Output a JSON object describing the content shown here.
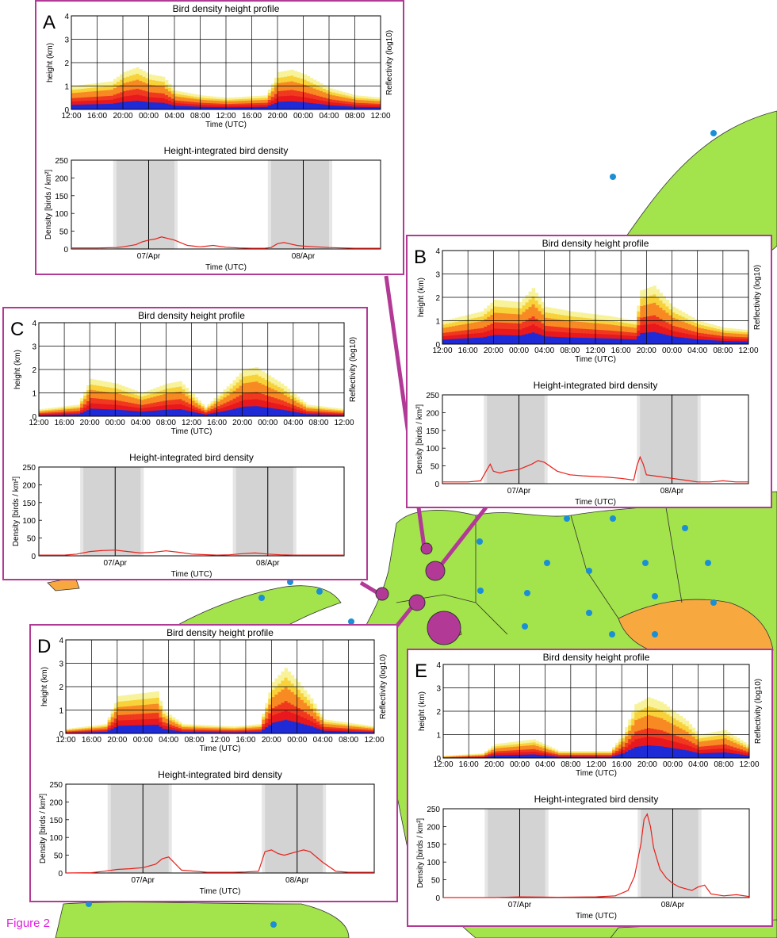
{
  "figure_label": "Figure 2",
  "colors": {
    "panel_border": "#b23a96",
    "land": "#a3e34b",
    "sea": "#ffffff",
    "orange_region": "#f7a940",
    "radar_dot": "#1a8fd6",
    "radar_circle": "#b23a96",
    "night_shade": "#d3d3d3",
    "twilight_shade": "#e6e6e6",
    "density_line": "#e8201a"
  },
  "panels": [
    {
      "id": "A",
      "letter": "A",
      "profile_title": "Bird density height profile",
      "density_title": "Height-integrated bird density"
    },
    {
      "id": "B",
      "letter": "B",
      "profile_title": "Bird density height profile",
      "density_title": "Height-integrated bird density"
    },
    {
      "id": "C",
      "letter": "C",
      "profile_title": "Bird density height profile",
      "density_title": "Height-integrated bird density"
    },
    {
      "id": "D",
      "letter": "D",
      "profile_title": "Bird density height profile",
      "density_title": "Height-integrated bird density"
    },
    {
      "id": "E",
      "letter": "E",
      "profile_title": "Bird density height profile",
      "density_title": "Height-integrated bird density"
    }
  ],
  "profile_axes": {
    "ylabel": "height (km)",
    "xlabel": "Time (UTC)",
    "colorbar_label": "Reflectivity (log10)",
    "yticks": [
      "0",
      "1",
      "2",
      "3",
      "4"
    ],
    "xticks": [
      "12:00",
      "16:00",
      "20:00",
      "00:00",
      "04:00",
      "08:00",
      "12:00",
      "16:00",
      "20:00",
      "00:00",
      "04:00",
      "08:00",
      "12:00"
    ]
  },
  "density_axes": {
    "ylabel": "Density [birds / km²]",
    "xlabel": "Time (UTC)",
    "yticks": [
      "0",
      "50",
      "100",
      "150",
      "200",
      "250"
    ],
    "date_labels": [
      "07/Apr",
      "08/Apr"
    ]
  },
  "chart_data": [
    {
      "panel": "A",
      "type": "line",
      "title": "Height-integrated bird density",
      "xlabel": "Time (UTC)",
      "ylabel": "Density [birds / km²]",
      "ylim": [
        0,
        250
      ],
      "xlim_hours": [
        0,
        48
      ],
      "x_hours": [
        0,
        4,
        7,
        8,
        10,
        11,
        12,
        13,
        14,
        16,
        18,
        19,
        20,
        22,
        24,
        26,
        28,
        30,
        31,
        32,
        33,
        34,
        35,
        36,
        38,
        40,
        42,
        44,
        46,
        48
      ],
      "y": [
        3,
        3,
        4,
        6,
        12,
        20,
        25,
        28,
        34,
        25,
        10,
        8,
        6,
        10,
        5,
        3,
        2,
        2,
        4,
        15,
        18,
        14,
        10,
        8,
        6,
        4,
        3,
        2,
        2,
        2
      ]
    },
    {
      "panel": "B",
      "type": "line",
      "title": "Height-integrated bird density",
      "xlabel": "Time (UTC)",
      "ylabel": "Density [birds / km²]",
      "ylim": [
        0,
        250
      ],
      "xlim_hours": [
        0,
        48
      ],
      "x_hours": [
        0,
        4,
        6,
        7,
        7.5,
        8,
        9,
        10,
        12,
        14,
        15,
        16,
        18,
        20,
        22,
        24,
        26,
        28,
        30,
        30.5,
        31,
        31.5,
        32,
        34,
        36,
        38,
        40,
        42,
        44,
        46,
        48
      ],
      "y": [
        5,
        5,
        8,
        40,
        55,
        35,
        30,
        35,
        40,
        55,
        65,
        60,
        35,
        25,
        22,
        20,
        18,
        15,
        10,
        50,
        75,
        55,
        25,
        20,
        15,
        10,
        5,
        5,
        8,
        5,
        5
      ]
    },
    {
      "panel": "C",
      "type": "line",
      "title": "Height-integrated bird density",
      "xlabel": "Time (UTC)",
      "ylabel": "Density [birds / km²]",
      "ylim": [
        0,
        250
      ],
      "xlim_hours": [
        0,
        48
      ],
      "x_hours": [
        0,
        4,
        6,
        8,
        10,
        12,
        14,
        16,
        18,
        20,
        22,
        24,
        28,
        30,
        32,
        34,
        36,
        38,
        40,
        44,
        48
      ],
      "y": [
        2,
        2,
        5,
        12,
        15,
        16,
        12,
        8,
        10,
        14,
        10,
        5,
        2,
        3,
        6,
        8,
        5,
        3,
        2,
        2,
        2
      ]
    },
    {
      "panel": "D",
      "type": "line",
      "title": "Height-integrated bird density",
      "xlabel": "Time (UTC)",
      "ylabel": "Density [birds / km²]",
      "ylim": [
        0,
        250
      ],
      "xlim_hours": [
        0,
        48
      ],
      "x_hours": [
        0,
        4,
        6,
        8,
        10,
        12,
        14,
        15,
        16,
        18,
        22,
        26,
        28,
        30,
        31,
        32,
        33,
        34,
        36,
        37,
        38,
        40,
        42,
        44,
        48
      ],
      "y": [
        0,
        1,
        5,
        10,
        12,
        15,
        25,
        40,
        45,
        8,
        2,
        2,
        3,
        5,
        60,
        65,
        55,
        50,
        60,
        65,
        60,
        30,
        5,
        2,
        2
      ]
    },
    {
      "panel": "E",
      "type": "line",
      "title": "Height-integrated bird density",
      "xlabel": "Time (UTC)",
      "ylabel": "Density [birds / km²]",
      "ylim": [
        0,
        250
      ],
      "xlim_hours": [
        0,
        48
      ],
      "x_hours": [
        0,
        8,
        12,
        18,
        24,
        27,
        29,
        30,
        31,
        31.5,
        32,
        32.5,
        33,
        34,
        35,
        36,
        37,
        38,
        39,
        40,
        41,
        42,
        44,
        46,
        48
      ],
      "y": [
        0,
        0,
        2,
        1,
        2,
        5,
        20,
        60,
        150,
        220,
        235,
        200,
        140,
        80,
        55,
        40,
        30,
        25,
        20,
        30,
        35,
        10,
        5,
        8,
        3
      ]
    }
  ]
}
